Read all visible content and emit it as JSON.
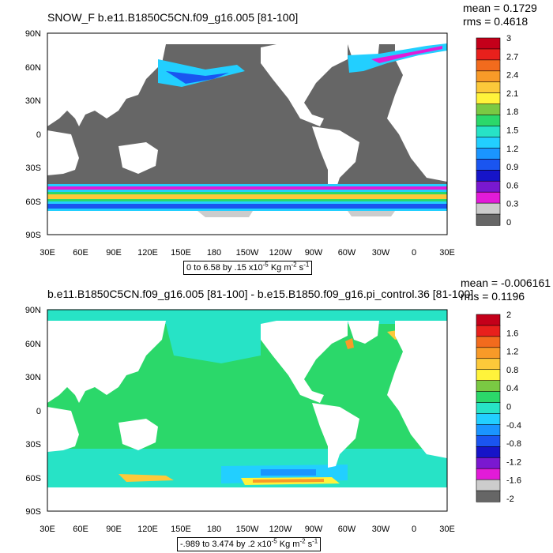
{
  "panels": [
    {
      "title": "SNOW_F b.e11.B1850C5CN.f09_g16.005 [81-100]",
      "mean": "mean = 0.1729",
      "rms": "rms = 0.4618",
      "range_text": "0 to 6.58 by .15 x10",
      "range_exp": "-5",
      "range_unit": " Kg m",
      "range_unit_exp": "-2",
      "range_tail": " s",
      "range_tail_exp": "-1",
      "colorbar_labels": [
        "3",
        "2.7",
        "2.4",
        "2.1",
        "1.8",
        "1.5",
        "1.2",
        "0.9",
        "0.6",
        "0.3",
        "0"
      ],
      "colorbar_colors": [
        "#c4001a",
        "#e8201c",
        "#f26b1d",
        "#f89a28",
        "#fcc93a",
        "#fff33b",
        "#7ac943",
        "#2bd86a",
        "#27e3c6",
        "#22cfff",
        "#1a95ff",
        "#1a55f0",
        "#1614c8",
        "#7a18d0",
        "#e21bd8",
        "#cccccc",
        "#666666"
      ]
    },
    {
      "title": "b.e11.B1850C5CN.f09_g16.005 [81-100] - b.e15.B1850.f09_g16.pi_control.36 [81-100]",
      "mean": "mean = -0.006161",
      "rms": "rms = 0.1196",
      "range_text": "-.989 to 3.474 by .2 x10",
      "range_exp": "-5",
      "range_unit": " Kg m",
      "range_unit_exp": "-2",
      "range_tail": " s",
      "range_tail_exp": "-1",
      "colorbar_labels": [
        "2",
        "1.6",
        "1.2",
        "0.8",
        "0.4",
        "0",
        "-0.4",
        "-0.8",
        "-1.2",
        "-1.6",
        "-2"
      ],
      "colorbar_colors": [
        "#c4001a",
        "#e8201c",
        "#f26b1d",
        "#f89a28",
        "#fcc93a",
        "#fff33b",
        "#7ac943",
        "#2bd86a",
        "#27e3c6",
        "#22cfff",
        "#1a95ff",
        "#1a55f0",
        "#1614c8",
        "#7a18d0",
        "#e21bd8",
        "#cccccc",
        "#666666"
      ]
    }
  ],
  "axes": {
    "lat_labels": [
      "90N",
      "60N",
      "30N",
      "0",
      "30S",
      "60S",
      "90S"
    ],
    "lon_labels": [
      "30E",
      "60E",
      "90E",
      "120E",
      "150E",
      "180",
      "150W",
      "120W",
      "90W",
      "60W",
      "30W",
      "0",
      "30E"
    ]
  },
  "colors": {
    "ocean_top": "#666666",
    "land": "#ffffff",
    "ocean_bottom": "#2bd86a",
    "ocean_bottom_light": "#27e3c6",
    "band_cyan": "#22cfff",
    "band_blue": "#1a55f0",
    "band_magenta": "#e21bd8",
    "band_yellow": "#fff33b",
    "band_orange": "#f89a28"
  }
}
